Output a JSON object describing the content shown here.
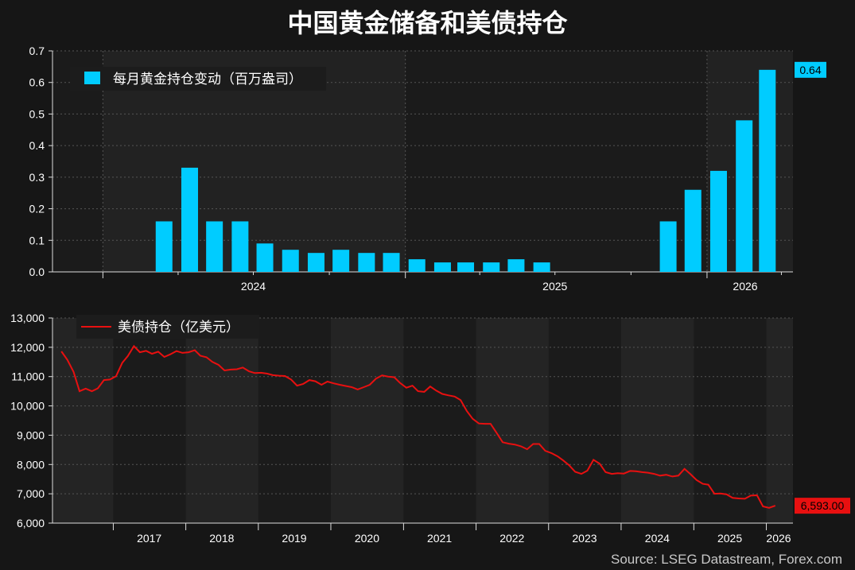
{
  "title": "中国黄金储备和美债持仓",
  "source": "Source: LSEG Datastream, Forex.com",
  "colors": {
    "background": "#161616",
    "bar": "#00CCFF",
    "line": "#E81010",
    "grid": "#555555"
  },
  "chart_data": [
    {
      "type": "bar",
      "legend": "每月黄金持仓变动（百万盎司）",
      "legend_position": "top-left",
      "series": [
        {
          "name": "每月黄金持仓变动（百万盎司）",
          "values": [
            0.16,
            0.33,
            0.16,
            0.16,
            0.09,
            0.07,
            0.06,
            0.07,
            0.06,
            0.06,
            0.04,
            0.03,
            0.03,
            0.03,
            0.04,
            0.03,
            0.16,
            0.26,
            0.32,
            0.48,
            0.64
          ]
        }
      ],
      "x_dates": [
        "2024-03",
        "2024-04",
        "2024-05",
        "2024-06",
        "2024-07",
        "2024-08",
        "2024-09",
        "2024-10",
        "2024-11",
        "2024-12",
        "2025-01",
        "2025-02",
        "2025-03",
        "2025-04",
        "2025-05",
        "2025-06",
        "2025-11",
        "2025-12",
        "2026-01",
        "2026-02",
        "2026-03"
      ],
      "xlim": [
        "2023-11-01",
        "2026-04-15"
      ],
      "x_tick_labels": [
        "2024",
        "2025",
        "2026"
      ],
      "ylim": [
        0,
        0.7
      ],
      "y_ticks": [
        "0.0",
        "0.1",
        "0.2",
        "0.3",
        "0.4",
        "0.5",
        "0.6",
        "0.7"
      ],
      "last_value_label": "0.64",
      "grid": true
    },
    {
      "type": "line",
      "legend": "美债持仓（亿美元）",
      "legend_position": "top-left",
      "series": [
        {
          "name": "美债持仓（亿美元）",
          "values": [
            11860,
            11570,
            11160,
            10500,
            10590,
            10500,
            10600,
            10880,
            10900,
            11010,
            11470,
            11700,
            12040,
            11830,
            11880,
            11780,
            11850,
            11670,
            11760,
            11870,
            11810,
            11830,
            11900,
            11710,
            11660,
            11500,
            11400,
            11210,
            11240,
            11250,
            11310,
            11180,
            11120,
            11130,
            11100,
            11050,
            11030,
            11020,
            10900,
            10690,
            10750,
            10880,
            10840,
            10720,
            10830,
            10770,
            10720,
            10680,
            10640,
            10560,
            10640,
            10720,
            10930,
            11040,
            11000,
            10980,
            10780,
            10620,
            10690,
            10500,
            10480,
            10660,
            10520,
            10410,
            10360,
            10320,
            10200,
            9830,
            9560,
            9400,
            9390,
            9390,
            9070,
            8760,
            8710,
            8680,
            8620,
            8520,
            8700,
            8700,
            8470,
            8390,
            8280,
            8140,
            7970,
            7750,
            7680,
            7790,
            8160,
            8030,
            7740,
            7680,
            7700,
            7690,
            7780,
            7770,
            7740,
            7720,
            7680,
            7620,
            7650,
            7590,
            7620,
            7850,
            7670,
            7470,
            7340,
            7310,
            7000,
            7010,
            6980,
            6860,
            6840,
            6830,
            6940,
            6950,
            6570,
            6520,
            6593
          ]
        }
      ],
      "x_start": "2016-04",
      "xlim": [
        "2016-03-01",
        "2026-05-15"
      ],
      "x_tick_labels": [
        "2017",
        "2018",
        "2019",
        "2020",
        "2021",
        "2022",
        "2023",
        "2024",
        "2025",
        "2026"
      ],
      "ylim": [
        6000,
        13000
      ],
      "y_ticks": [
        "6,000",
        "7,000",
        "8,000",
        "9,000",
        "10,000",
        "11,000",
        "12,000",
        "13,000"
      ],
      "last_value_label": "6,593.00",
      "grid": true
    }
  ]
}
